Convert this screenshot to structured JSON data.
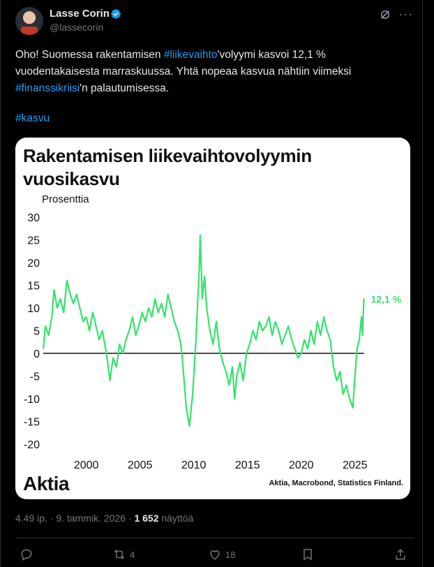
{
  "author": {
    "name": "Lasse Corin",
    "handle": "@lassecorin"
  },
  "tweet": {
    "line1_pre": "Oho! Suomessa rakentamisen ",
    "line1_tag": "#liikevaihto",
    "line1_post": "'volyymi kasvoi 12,1 %",
    "line2": "vuodentakaisesta marraskuussa. Yhtä nopeaa kasvua nähtiin viimeksi",
    "line3_tag": "#finanssikriisi",
    "line3_post": "'n palautumisessa.",
    "line4_tag": "#kasvu"
  },
  "meta": {
    "time": "4.49 ip.",
    "sep": " · ",
    "date": "9. tammik. 2026",
    "views_count": "1 652",
    "views_label": " näyttöä"
  },
  "actions": {
    "retweets": "4",
    "likes": "18"
  },
  "card": {
    "brand": "Aktia",
    "source": "Aktia, Macrobond, Statistics Finland."
  },
  "colors": {
    "line": "#33e36b",
    "accent": "#1d9bf0",
    "background": "#000000"
  },
  "chart_data": {
    "type": "line",
    "title_line1": "Rakentamisen liikevaihtovolyymin",
    "title_line2": "vuosikasvu",
    "ylabel": "Prosenttia",
    "ylim": [
      -20,
      30
    ],
    "xlim": [
      1996,
      2026.25
    ],
    "yticks": [
      "30",
      "25",
      "20",
      "15",
      "10",
      "5",
      "0",
      "-5",
      "-10",
      "-15",
      "-20"
    ],
    "ytick_values": [
      30,
      25,
      20,
      15,
      10,
      5,
      0,
      -5,
      -10,
      -15,
      -20
    ],
    "xticks": [
      "2000",
      "2005",
      "2010",
      "2015",
      "2020",
      "2025"
    ],
    "xtick_values": [
      2000,
      2005,
      2010,
      2015,
      2020,
      2025
    ],
    "end_label": "12,1 %",
    "series": [
      {
        "name": "Vuosikasvu",
        "x": [
          1996,
          1996.2,
          1996.5,
          1996.8,
          1997,
          1997.3,
          1997.6,
          1997.9,
          1998.2,
          1998.5,
          1998.8,
          1999.1,
          1999.4,
          1999.7,
          2000,
          2000.3,
          2000.6,
          2000.9,
          2001.2,
          2001.5,
          2001.8,
          2002,
          2002.2,
          2002.5,
          2002.8,
          2003.1,
          2003.4,
          2003.7,
          2004,
          2004.3,
          2004.6,
          2004.9,
          2005.2,
          2005.5,
          2005.8,
          2006.1,
          2006.4,
          2006.7,
          2007,
          2007.3,
          2007.6,
          2007.9,
          2008.2,
          2008.5,
          2008.8,
          2009,
          2009.3,
          2009.6,
          2009.9,
          2010.2,
          2010.5,
          2010.6,
          2010.8,
          2011,
          2011.2,
          2011.5,
          2011.8,
          2012.1,
          2012.4,
          2012.7,
          2013,
          2013.3,
          2013.6,
          2013.8,
          2014,
          2014.3,
          2014.6,
          2014.9,
          2015.2,
          2015.5,
          2015.8,
          2016.1,
          2016.4,
          2016.7,
          2017,
          2017.3,
          2017.6,
          2017.9,
          2018.2,
          2018.5,
          2018.8,
          2019.1,
          2019.4,
          2019.7,
          2020,
          2020.3,
          2020.6,
          2020.9,
          2021.2,
          2021.5,
          2021.8,
          2022.1,
          2022.4,
          2022.7,
          2023,
          2023.3,
          2023.6,
          2023.9,
          2024.2,
          2024.5,
          2024.8,
          2025,
          2025.2,
          2025.4,
          2025.6,
          2025.7,
          2025.83
        ],
        "y": [
          1,
          6,
          4,
          8,
          14,
          10,
          12,
          9,
          16,
          13,
          11,
          13,
          10,
          7,
          8,
          5,
          9,
          6,
          3,
          5,
          1,
          -2,
          -6,
          -1,
          -3,
          2,
          0,
          3,
          5,
          8,
          4,
          6,
          9,
          7,
          10,
          8,
          12,
          9,
          11,
          8,
          13,
          10,
          7,
          5,
          2,
          -3,
          -12,
          -16,
          -9,
          3,
          18,
          26,
          12,
          17,
          10,
          5,
          2,
          7,
          1,
          -2,
          -4,
          -7,
          -3,
          -10,
          -5,
          -2,
          -6,
          0,
          2,
          5,
          3,
          7,
          5,
          6,
          8,
          4,
          7,
          5,
          2,
          4,
          6,
          3,
          1,
          -1,
          0,
          3,
          1,
          5,
          2,
          7,
          4,
          8,
          5,
          3,
          -3,
          -6,
          -4,
          -9,
          -7,
          -10,
          -12,
          -5,
          1,
          3,
          8,
          4,
          12.1
        ]
      }
    ]
  }
}
